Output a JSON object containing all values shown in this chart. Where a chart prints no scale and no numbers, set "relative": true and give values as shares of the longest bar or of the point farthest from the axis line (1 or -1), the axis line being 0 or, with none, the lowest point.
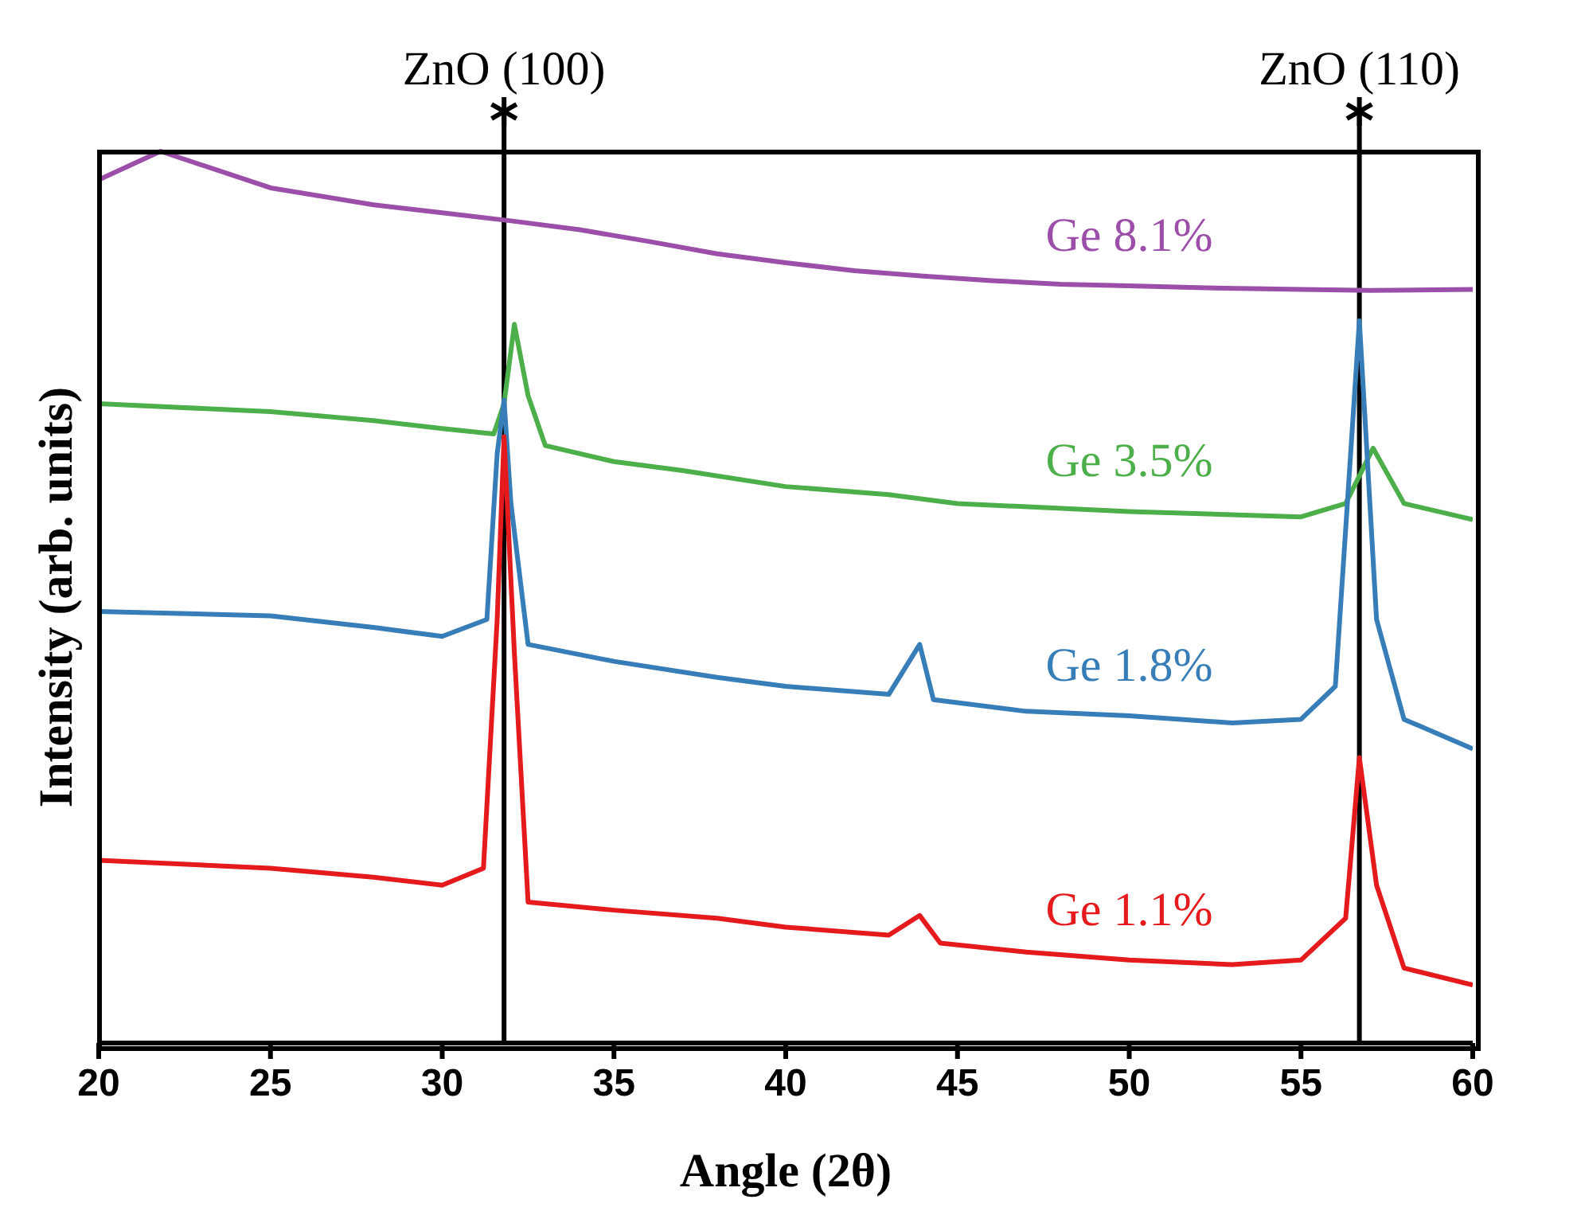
{
  "chart_data": {
    "type": "line",
    "relative": true,
    "xlabel": "Angle (2θ)",
    "ylabel": "Intensity (arb. units)",
    "xlim": [
      20,
      60
    ],
    "xticks": [
      20,
      25,
      30,
      35,
      40,
      45,
      50,
      55,
      60
    ],
    "tick_labels": "x",
    "marker": "none",
    "line_style": "solid",
    "ref_lines": [
      {
        "axis": "x",
        "value": 31.8,
        "label": "ZnO (100)",
        "color": "#000000"
      },
      {
        "axis": "x",
        "value": 56.7,
        "label": "ZnO (110)",
        "color": "#000000"
      }
    ],
    "series": [
      {
        "name": "Ge 8.1%",
        "color": "#9b4fa8",
        "x": [
          20,
          21.8,
          25,
          28,
          30,
          32,
          34,
          36,
          38,
          40,
          42,
          44,
          46,
          48,
          50,
          52,
          55,
          57,
          60
        ],
        "values": [
          0.968,
          1.0,
          0.959,
          0.94,
          0.931,
          0.922,
          0.912,
          0.899,
          0.885,
          0.875,
          0.866,
          0.86,
          0.855,
          0.851,
          0.849,
          0.847,
          0.845,
          0.844,
          0.845
        ]
      },
      {
        "name": "Ge 3.5%",
        "color": "#4daf4a",
        "x": [
          20,
          25,
          28,
          30,
          31.5,
          31.8,
          32.1,
          32.5,
          33,
          35,
          37,
          40,
          43,
          45,
          50,
          55,
          56.3,
          57.1,
          58,
          60
        ],
        "values": [
          0.717,
          0.708,
          0.698,
          0.689,
          0.683,
          0.717,
          0.806,
          0.726,
          0.67,
          0.652,
          0.642,
          0.624,
          0.615,
          0.605,
          0.596,
          0.59,
          0.605,
          0.667,
          0.605,
          0.587
        ]
      },
      {
        "name": "Ge 1.8%",
        "color": "#377eb8",
        "x": [
          20,
          25,
          28,
          30,
          31.3,
          31.6,
          31.8,
          32,
          32.5,
          35,
          38,
          40,
          43,
          43.9,
          44.3,
          47,
          50,
          53,
          55,
          56,
          56.7,
          57.2,
          58,
          60
        ],
        "values": [
          0.484,
          0.479,
          0.466,
          0.456,
          0.475,
          0.661,
          0.721,
          0.605,
          0.447,
          0.428,
          0.41,
          0.4,
          0.391,
          0.447,
          0.385,
          0.372,
          0.367,
          0.359,
          0.363,
          0.4,
          0.81,
          0.475,
          0.363,
          0.33
        ]
      },
      {
        "name": "Ge 1.1%",
        "color": "#e41a1c",
        "x": [
          20,
          25,
          28,
          30,
          31.2,
          31.6,
          31.8,
          32.1,
          32.5,
          35,
          38,
          40,
          43,
          43.9,
          44.5,
          47,
          50,
          53,
          55,
          56.3,
          56.7,
          57.2,
          58,
          60
        ],
        "values": [
          0.205,
          0.196,
          0.186,
          0.177,
          0.196,
          0.475,
          0.68,
          0.438,
          0.158,
          0.149,
          0.14,
          0.13,
          0.121,
          0.143,
          0.112,
          0.102,
          0.093,
          0.088,
          0.093,
          0.14,
          0.32,
          0.177,
          0.084,
          0.065
        ]
      }
    ]
  }
}
